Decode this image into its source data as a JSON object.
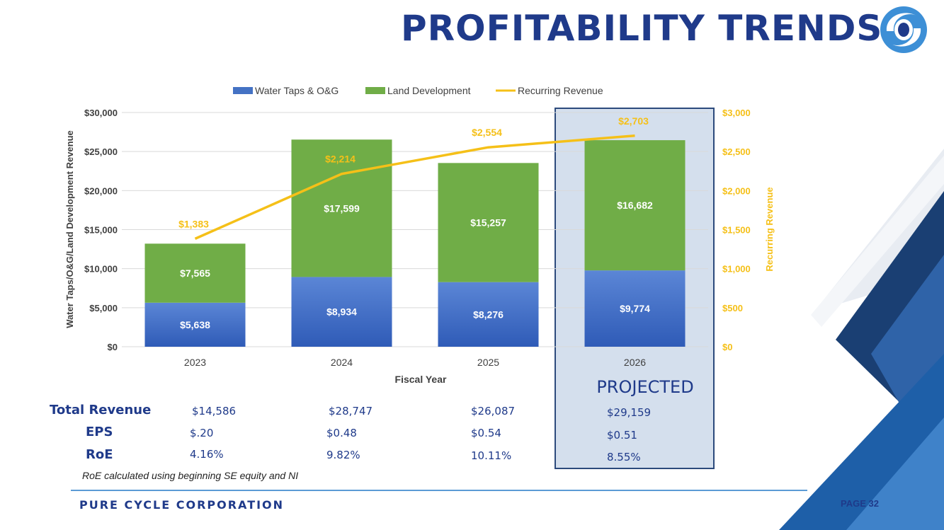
{
  "header": {
    "title": "PROFITABILITY TRENDS"
  },
  "chart_data": {
    "type": "bar",
    "stacked": true,
    "categories": [
      "2023",
      "2024",
      "2025",
      "2026"
    ],
    "series": [
      {
        "name": "Water Taps & O&G",
        "type": "bar",
        "axis": "left",
        "color": "#4472c4",
        "values": [
          5638,
          8934,
          8276,
          9774
        ],
        "labels": [
          "$5,638",
          "$8,934",
          "$8,276",
          "$9,774"
        ]
      },
      {
        "name": "Land Development",
        "type": "bar",
        "axis": "left",
        "color": "#70ad47",
        "values": [
          7565,
          17599,
          15257,
          16682
        ],
        "labels": [
          "$7,565",
          "$17,599",
          "$15,257",
          "$16,682"
        ]
      },
      {
        "name": "Recurring Revenue",
        "type": "line",
        "axis": "right",
        "color": "#f5c018",
        "values": [
          1383,
          2214,
          2554,
          2703
        ],
        "labels": [
          "$1,383",
          "$2,214",
          "$2,554",
          "$2,703"
        ]
      }
    ],
    "xlabel": "Fiscal Year",
    "ylabel": "Water Taps/O&G/Land Development Revenue",
    "y2label": "Recurring Revenue",
    "ylim": [
      0,
      30000
    ],
    "y2lim": [
      0,
      3000
    ],
    "yticks": [
      "$0",
      "$5,000",
      "$10,000",
      "$15,000",
      "$20,000",
      "$25,000",
      "$30,000"
    ],
    "y2ticks": [
      "$0",
      "$500",
      "$1,000",
      "$1,500",
      "$2,000",
      "$2,500",
      "$3,000"
    ],
    "legend": "top",
    "grid": true
  },
  "projected_label": "PROJECTED",
  "table": {
    "rows": [
      {
        "label": "Total Revenue",
        "values": [
          "$14,586",
          "$28,747",
          "$26,087",
          "$29,159"
        ]
      },
      {
        "label": "EPS",
        "values": [
          "$.20",
          "$0.48",
          "$0.54",
          "$0.51"
        ]
      },
      {
        "label": "RoE",
        "values": [
          "4.16%",
          "9.82%",
          "10.11%",
          "8.55%"
        ]
      }
    ]
  },
  "note": "RoE calculated using beginning SE equity and NI",
  "footer": {
    "company": "PURE CYCLE CORPORATION",
    "page": "PAGE 32"
  },
  "colors": {
    "brand": "#1f3a8a",
    "accent": "#5b9bd5",
    "highlight": "#f5c018"
  }
}
